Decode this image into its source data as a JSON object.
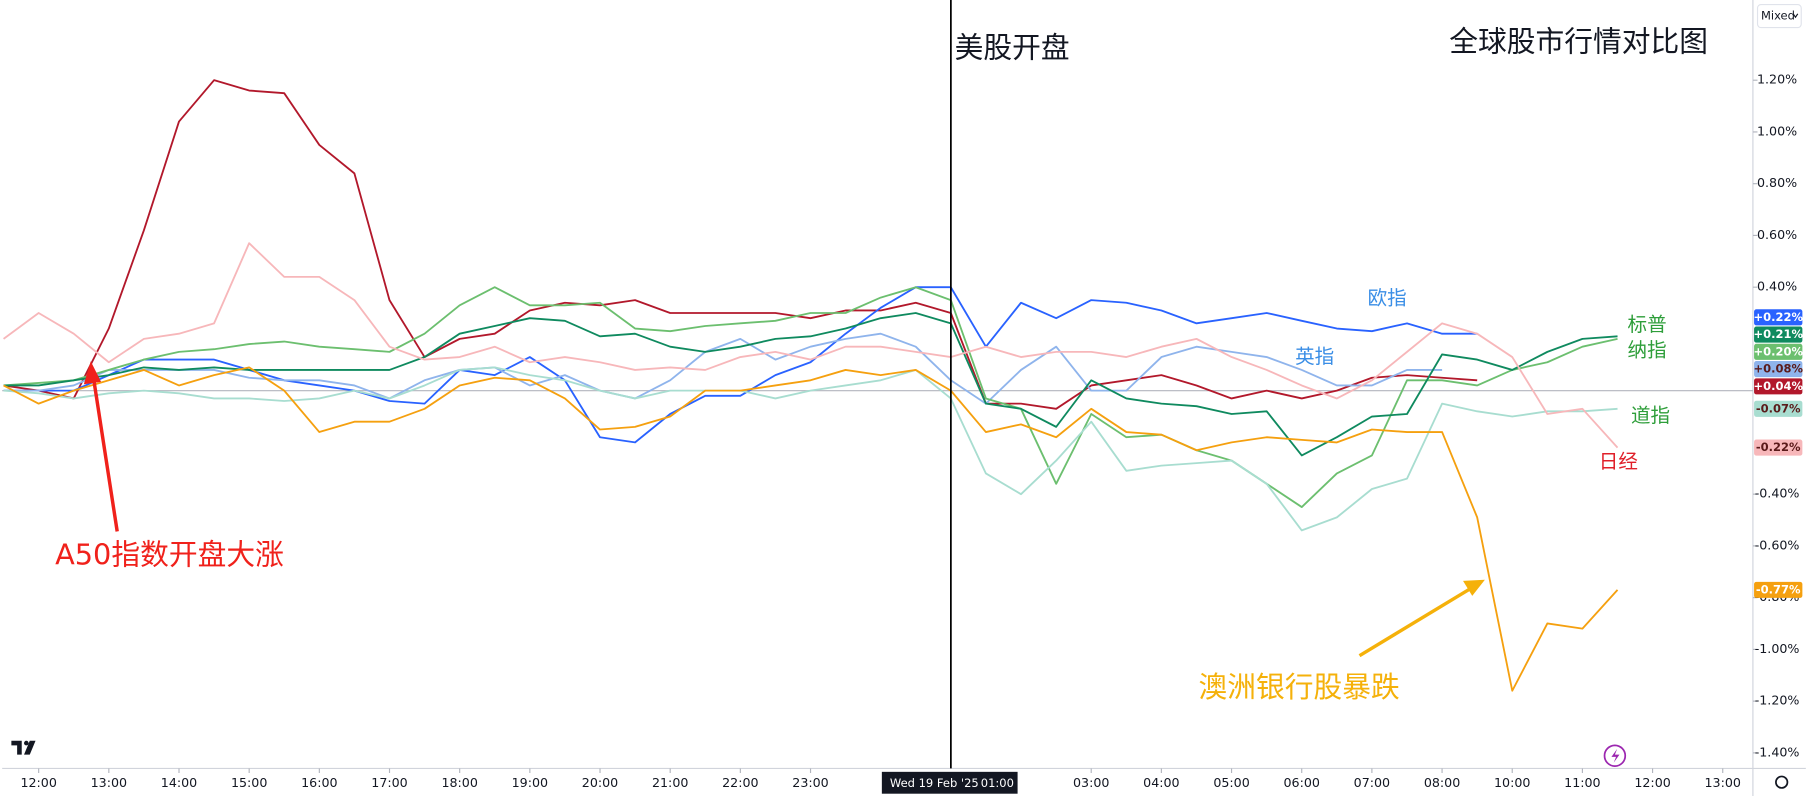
{
  "chart_data": {
    "type": "line",
    "title": "全球股市行情对比图",
    "scale_mode": "Mixed",
    "annotations": [
      {
        "text": "美股开盘"
      },
      {
        "text": "A50指数开盘大涨"
      },
      {
        "text": "澳洲银行股暴跌"
      }
    ],
    "crosshair": {
      "x": 13,
      "date": "Wed 19 Feb '25",
      "time": "01:00"
    },
    "baseline": 0,
    "xlim": [
      -0.52,
      24.43
    ],
    "ylim": [
      -1.46,
      1.51
    ],
    "xticks": [
      {
        "value": 0,
        "label": "12:00"
      },
      {
        "value": 1,
        "label": "13:00"
      },
      {
        "value": 2,
        "label": "14:00"
      },
      {
        "value": 3,
        "label": "15:00"
      },
      {
        "value": 4,
        "label": "16:00"
      },
      {
        "value": 5,
        "label": "17:00"
      },
      {
        "value": 6,
        "label": "18:00"
      },
      {
        "value": 7,
        "label": "19:00"
      },
      {
        "value": 8,
        "label": "20:00"
      },
      {
        "value": 9,
        "label": "21:00"
      },
      {
        "value": 10,
        "label": "22:00"
      },
      {
        "value": 11,
        "label": "23:00"
      },
      {
        "value": 15,
        "label": "03:00"
      },
      {
        "value": 16,
        "label": "04:00"
      },
      {
        "value": 17,
        "label": "05:00"
      },
      {
        "value": 18,
        "label": "06:00"
      },
      {
        "value": 19,
        "label": "07:00"
      },
      {
        "value": 20,
        "label": "08:00"
      },
      {
        "value": 21,
        "label": "10:00"
      },
      {
        "value": 22,
        "label": "11:00"
      },
      {
        "value": 23,
        "label": "12:00"
      },
      {
        "value": 24,
        "label": "13:00"
      }
    ],
    "yticks": [
      {
        "value": 1.2,
        "label": "1.20%"
      },
      {
        "value": 1.0,
        "label": "1.00%"
      },
      {
        "value": 0.8,
        "label": "0.80%"
      },
      {
        "value": 0.6,
        "label": "0.60%"
      },
      {
        "value": 0.4,
        "label": "0.40%"
      },
      {
        "value": -0.4,
        "label": "-0.40%"
      },
      {
        "value": -0.6,
        "label": "-0.60%"
      },
      {
        "value": -0.8,
        "label": "-0.80%"
      },
      {
        "value": -1.0,
        "label": "-1.00%"
      },
      {
        "value": -1.2,
        "label": "-1.20%"
      },
      {
        "value": -1.4,
        "label": "-1.40%"
      }
    ],
    "x": [
      -0.5,
      0,
      0.5,
      1,
      1.5,
      2,
      2.5,
      3,
      3.5,
      4,
      4.5,
      5,
      5.5,
      6,
      6.5,
      7,
      7.5,
      8,
      8.5,
      9,
      9.5,
      10,
      10.5,
      11,
      11.5,
      12,
      12.5,
      13,
      13.5,
      14,
      14.5,
      15,
      15.5,
      16,
      16.5,
      17,
      17.5,
      18,
      18.5,
      19,
      19.5,
      20,
      20.5,
      21,
      21.5,
      22,
      22.5
    ],
    "series": [
      {
        "color": "#b2182b",
        "end_label": "+0.04%",
        "values": [
          0.02,
          0,
          -0.03,
          0.24,
          0.62,
          1.04,
          1.2,
          1.16,
          1.15,
          0.95,
          0.84,
          0.35,
          0.13,
          0.2,
          0.22,
          0.31,
          0.34,
          0.33,
          0.35,
          0.3,
          0.3,
          0.3,
          0.3,
          0.28,
          0.31,
          0.31,
          0.34,
          0.3,
          -0.05,
          -0.05,
          -0.07,
          0.02,
          0.04,
          0.06,
          0.02,
          -0.03,
          0,
          -0.03,
          0,
          0.05,
          0.06,
          0.05,
          0.04,
          null,
          null,
          null,
          null
        ]
      },
      {
        "name": "欧指",
        "color": "#2962ff",
        "end_label": "+0.22%",
        "values": [
          0,
          0,
          0,
          0.06,
          0.12,
          0.12,
          0.12,
          0.08,
          0.04,
          0.02,
          0,
          -0.04,
          -0.05,
          0.08,
          0.06,
          0.13,
          0.04,
          -0.18,
          -0.2,
          -0.09,
          -0.02,
          -0.02,
          0.06,
          0.11,
          0.22,
          0.32,
          0.4,
          0.4,
          0.17,
          0.34,
          0.28,
          0.35,
          0.34,
          0.31,
          0.26,
          0.28,
          0.3,
          0.27,
          0.24,
          0.23,
          0.26,
          0.22,
          0.22,
          null,
          null,
          null,
          null
        ]
      },
      {
        "name": "英指",
        "color": "#8fb4ec",
        "end_label": "+0.08%",
        "values": [
          0,
          0,
          0.02,
          0.08,
          0.08,
          0.08,
          0.08,
          0.05,
          0.04,
          0.04,
          0.02,
          -0.03,
          0.04,
          0.08,
          0.09,
          0.02,
          0.06,
          0,
          -0.03,
          0.04,
          0.15,
          0.2,
          0.12,
          0.17,
          0.2,
          0.22,
          0.17,
          0.04,
          -0.05,
          0.08,
          0.17,
          0,
          0,
          0.13,
          0.17,
          0.15,
          0.13,
          0.08,
          0.02,
          0.02,
          0.08,
          0.08,
          null,
          null,
          null,
          null,
          null
        ]
      },
      {
        "name": "标普",
        "color": "#6cbf6f",
        "end_label": "+0.20%",
        "values": [
          0.02,
          0.03,
          0.04,
          0.08,
          0.12,
          0.15,
          0.16,
          0.18,
          0.19,
          0.17,
          0.16,
          0.15,
          0.22,
          0.33,
          0.4,
          0.33,
          0.33,
          0.34,
          0.24,
          0.23,
          0.25,
          0.26,
          0.27,
          0.3,
          0.3,
          0.36,
          0.4,
          0.35,
          -0.03,
          -0.07,
          -0.36,
          -0.09,
          -0.18,
          -0.17,
          -0.23,
          -0.27,
          -0.36,
          -0.45,
          -0.32,
          -0.25,
          0.04,
          0.04,
          0.02,
          0.08,
          0.11,
          0.17,
          0.2
        ]
      },
      {
        "name": "纳指",
        "color": "#0f8a5f",
        "end_label": "+0.21%",
        "values": [
          0.02,
          0.02,
          0.04,
          0.06,
          0.09,
          0.08,
          0.09,
          0.08,
          0.08,
          0.08,
          0.08,
          0.08,
          0.13,
          0.22,
          0.25,
          0.28,
          0.27,
          0.21,
          0.22,
          0.17,
          0.15,
          0.17,
          0.2,
          0.21,
          0.24,
          0.28,
          0.3,
          0.26,
          -0.05,
          -0.07,
          -0.14,
          0.04,
          -0.03,
          -0.05,
          -0.06,
          -0.09,
          -0.08,
          -0.25,
          -0.18,
          -0.1,
          -0.09,
          0.14,
          0.12,
          0.08,
          0.15,
          0.2,
          0.21
        ]
      },
      {
        "name": "道指",
        "color": "#a8ddd0",
        "end_label": "-0.07%",
        "values": [
          0,
          -0.01,
          -0.03,
          -0.01,
          0,
          -0.01,
          -0.03,
          -0.03,
          -0.04,
          -0.03,
          0,
          -0.03,
          0.02,
          0.08,
          0.09,
          0.06,
          0.04,
          0,
          -0.03,
          0,
          0,
          0,
          -0.03,
          0,
          0.02,
          0.04,
          0.08,
          -0.03,
          -0.32,
          -0.4,
          -0.27,
          -0.12,
          -0.31,
          -0.29,
          -0.28,
          -0.27,
          -0.36,
          -0.54,
          -0.49,
          -0.38,
          -0.34,
          -0.05,
          -0.08,
          -0.1,
          -0.08,
          -0.08,
          -0.07
        ]
      },
      {
        "name": "日经",
        "color": "#f7b7ba",
        "end_label": "-0.22%",
        "values": [
          0.2,
          0.3,
          0.22,
          0.11,
          0.2,
          0.22,
          0.26,
          0.57,
          0.44,
          0.44,
          0.35,
          0.17,
          0.12,
          0.13,
          0.17,
          0.11,
          0.13,
          0.11,
          0.08,
          0.09,
          0.08,
          0.13,
          0.15,
          0.12,
          0.17,
          0.17,
          0.15,
          0.13,
          0.17,
          0.13,
          0.15,
          0.15,
          0.13,
          0.17,
          0.2,
          0.13,
          0.08,
          0.02,
          -0.03,
          0.04,
          0.15,
          0.26,
          0.22,
          0.13,
          -0.09,
          -0.07,
          -0.22
        ]
      },
      {
        "color": "#f5a00f",
        "end_label": "-0.77%",
        "values": [
          0.02,
          -0.05,
          0,
          0.04,
          0.08,
          0.02,
          0.06,
          0.09,
          0,
          -0.16,
          -0.12,
          -0.12,
          -0.07,
          0.02,
          0.05,
          0.04,
          -0.03,
          -0.15,
          -0.14,
          -0.1,
          0,
          0,
          0.02,
          0.04,
          0.08,
          0.06,
          0.08,
          0,
          -0.16,
          -0.13,
          -0.18,
          -0.07,
          -0.16,
          -0.17,
          -0.23,
          -0.2,
          -0.18,
          -0.19,
          -0.2,
          -0.15,
          -0.16,
          -0.16,
          -0.49,
          -1.16,
          -0.9,
          -0.92,
          -0.77
        ]
      }
    ]
  }
}
